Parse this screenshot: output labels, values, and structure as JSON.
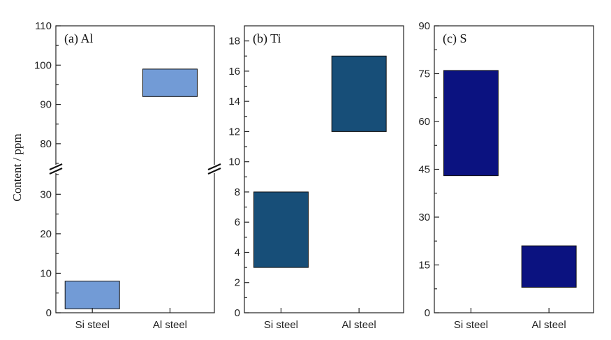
{
  "ylabel": "Content / ppm",
  "chart_data": [
    {
      "type": "bar",
      "title": "(a) Al",
      "categories": [
        "Si steel",
        "Al steel"
      ],
      "ranges": [
        [
          1,
          8
        ],
        [
          92,
          99
        ]
      ],
      "color": "#729bd6",
      "axis_break": {
        "lower": [
          0,
          35
        ],
        "upper": [
          75,
          110
        ]
      },
      "yticks_major": [
        0,
        10,
        20,
        30,
        80,
        90,
        100,
        110
      ],
      "yticks_minor": [
        5,
        15,
        25,
        35,
        75,
        85,
        95,
        105
      ]
    },
    {
      "type": "bar",
      "title": "(b) Ti",
      "categories": [
        "Si steel",
        "Al steel"
      ],
      "ranges": [
        [
          3,
          8
        ],
        [
          12,
          17
        ]
      ],
      "color": "#174e78",
      "ylim": [
        0,
        19
      ],
      "yticks_major": [
        0,
        2,
        4,
        6,
        8,
        10,
        12,
        14,
        16,
        18
      ],
      "yticks_minor": [
        1,
        3,
        5,
        7,
        9,
        11,
        13,
        15,
        17
      ]
    },
    {
      "type": "bar",
      "title": "(c) S",
      "categories": [
        "Si steel",
        "Al steel"
      ],
      "ranges": [
        [
          43,
          76
        ],
        [
          8,
          21
        ]
      ],
      "color": "#0b1280",
      "ylim": [
        0,
        90
      ],
      "yticks_major": [
        0,
        15,
        30,
        45,
        60,
        75,
        90
      ],
      "yticks_minor": [
        7.5,
        22.5,
        37.5,
        52.5,
        67.5,
        82.5
      ]
    }
  ]
}
